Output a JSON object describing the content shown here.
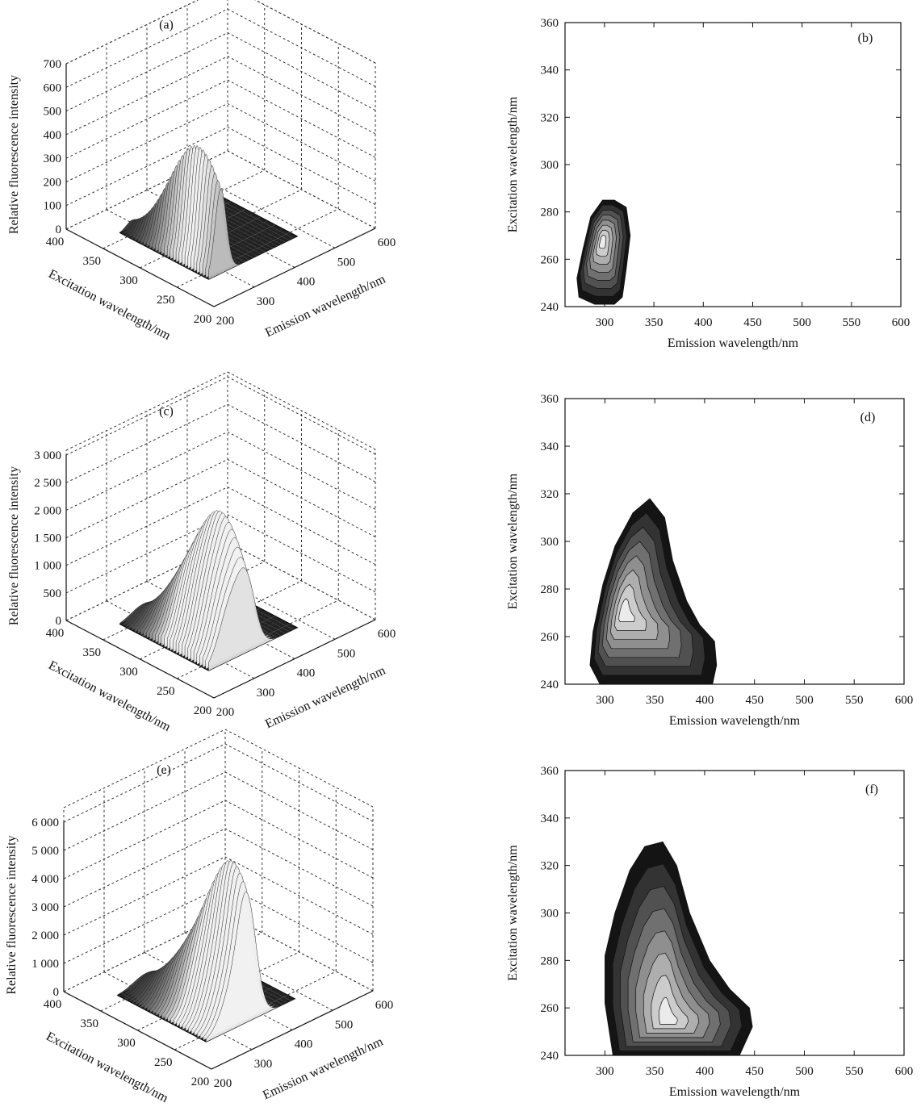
{
  "figure": {
    "panels": [
      "(a)",
      "(b)",
      "(c)",
      "(d)",
      "(e)",
      "(f)"
    ]
  },
  "chart_data": [
    {
      "panel": "(a)",
      "type": "surface3d",
      "xlabel": "Emission wavelength/nm",
      "ylabel": "Excitation wavelength/nm",
      "zlabel": "Relative fluorescence intensity",
      "xticks": [
        "200",
        "300",
        "400",
        "500",
        "600"
      ],
      "yticks": [
        "200",
        "250",
        "300",
        "350",
        "400"
      ],
      "zticks": [
        "0",
        "100",
        "200",
        "300",
        "400",
        "500",
        "600",
        "700"
      ],
      "xlim": [
        200,
        600
      ],
      "ylim": [
        200,
        400
      ],
      "zlim": [
        0,
        700
      ],
      "peaks": [
        {
          "em": 290,
          "ex": 270,
          "intensity": 490,
          "wem": 14,
          "wex": 38
        }
      ],
      "grid": true
    },
    {
      "panel": "(b)",
      "type": "contour",
      "xlabel": "Emission wavelength/nm",
      "ylabel": "Excitation wavelength/nm",
      "xticks": [
        "300",
        "350",
        "400",
        "450",
        "500",
        "550",
        "600"
      ],
      "yticks": [
        "240",
        "260",
        "280",
        "300",
        "320",
        "340",
        "360"
      ],
      "xlim": [
        260,
        600
      ],
      "ylim": [
        240,
        360
      ],
      "outline": [
        [
          272,
          252
        ],
        [
          278,
          264
        ],
        [
          286,
          278
        ],
        [
          298,
          285
        ],
        [
          310,
          285
        ],
        [
          322,
          282
        ],
        [
          326,
          270
        ],
        [
          322,
          256
        ],
        [
          318,
          244
        ],
        [
          310,
          241
        ],
        [
          290,
          241
        ],
        [
          274,
          244
        ]
      ],
      "peak": {
        "em": 298,
        "ex": 268
      },
      "grid": false
    },
    {
      "panel": "(c)",
      "type": "surface3d",
      "xlabel": "Emission wavelength/nm",
      "ylabel": "Excitation wavelength/nm",
      "zlabel": "Relative fluorescence intensity",
      "xticks": [
        "200",
        "300",
        "400",
        "500",
        "600"
      ],
      "yticks": [
        "200",
        "250",
        "300",
        "350",
        "400"
      ],
      "zticks": [
        "0",
        "500",
        "1 000",
        "1 500",
        "2 000",
        "2 500",
        "3 000"
      ],
      "xlim": [
        200,
        600
      ],
      "ylim": [
        200,
        400
      ],
      "zlim": [
        0,
        3000
      ],
      "peaks": [
        {
          "em": 315,
          "ex": 275,
          "intensity": 1500,
          "wem": 28,
          "wex": 40
        },
        {
          "em": 355,
          "ex": 270,
          "intensity": 1700,
          "wem": 22,
          "wex": 32
        }
      ],
      "grid": true
    },
    {
      "panel": "(d)",
      "type": "contour",
      "xlabel": "Emission wavelength/nm",
      "ylabel": "Excitation wavelength/nm",
      "xticks": [
        "300",
        "350",
        "400",
        "450",
        "500",
        "550",
        "600"
      ],
      "yticks": [
        "240",
        "260",
        "280",
        "300",
        "320",
        "340",
        "360"
      ],
      "xlim": [
        260,
        600
      ],
      "ylim": [
        240,
        360
      ],
      "outline": [
        [
          285,
          248
        ],
        [
          288,
          262
        ],
        [
          298,
          282
        ],
        [
          310,
          298
        ],
        [
          328,
          312
        ],
        [
          345,
          318
        ],
        [
          360,
          310
        ],
        [
          368,
          292
        ],
        [
          382,
          275
        ],
        [
          395,
          265
        ],
        [
          410,
          258
        ],
        [
          412,
          248
        ],
        [
          408,
          240
        ],
        [
          295,
          240
        ]
      ],
      "peak": {
        "em": 318,
        "ex": 270
      },
      "grid": false
    },
    {
      "panel": "(e)",
      "type": "surface3d",
      "xlabel": "Emission wavelength/nm",
      "ylabel": "Excitation wavelength/nm",
      "zlabel": "Relative fluorescence intensity",
      "xticks": [
        "200",
        "300",
        "400",
        "500",
        "600"
      ],
      "yticks": [
        "200",
        "250",
        "300",
        "350",
        "400"
      ],
      "zticks": [
        "0",
        "1 000",
        "2 000",
        "3 000",
        "4 000",
        "5 000",
        "6 000"
      ],
      "xlim": [
        200,
        600
      ],
      "ylim": [
        200,
        400
      ],
      "zlim": [
        0,
        6000
      ],
      "peaks": [
        {
          "em": 330,
          "ex": 278,
          "intensity": 2400,
          "wem": 30,
          "wex": 40
        },
        {
          "em": 362,
          "ex": 255,
          "intensity": 4200,
          "wem": 22,
          "wex": 30
        }
      ],
      "grid": true
    },
    {
      "panel": "(f)",
      "type": "contour",
      "xlabel": "Emission wavelength/nm",
      "ylabel": "Excitation wavelength/nm",
      "xticks": [
        "300",
        "350",
        "400",
        "450",
        "500",
        "550",
        "600"
      ],
      "yticks": [
        "240",
        "260",
        "280",
        "300",
        "320",
        "340",
        "360"
      ],
      "xlim": [
        260,
        600
      ],
      "ylim": [
        240,
        360
      ],
      "outline": [
        [
          308,
          240
        ],
        [
          300,
          262
        ],
        [
          300,
          282
        ],
        [
          310,
          300
        ],
        [
          325,
          318
        ],
        [
          340,
          328
        ],
        [
          358,
          330
        ],
        [
          372,
          320
        ],
        [
          385,
          300
        ],
        [
          405,
          280
        ],
        [
          425,
          268
        ],
        [
          445,
          260
        ],
        [
          448,
          252
        ],
        [
          435,
          240
        ]
      ],
      "peak": {
        "em": 362,
        "ex": 255
      },
      "grid": false
    }
  ]
}
